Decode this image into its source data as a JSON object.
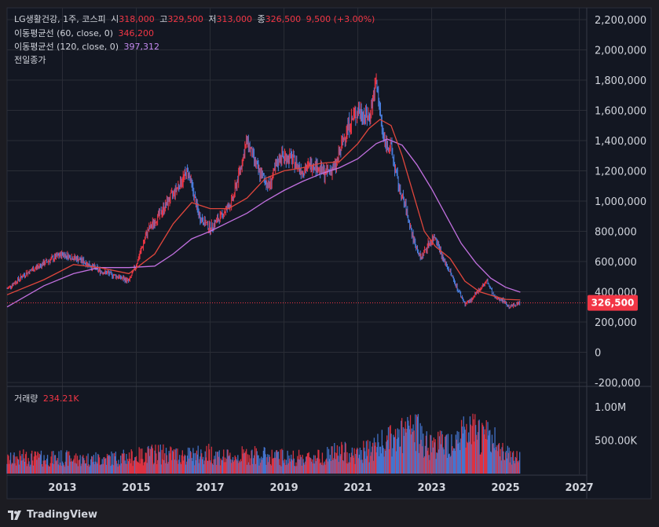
{
  "legend": {
    "symbol": "LG생활건강, 1주, 코스피",
    "open_label": "시",
    "open": "318,000",
    "high_label": "고",
    "high": "329,500",
    "low_label": "저",
    "low": "313,000",
    "close_label": "종",
    "close": "326,500",
    "change": "9,500 (+3.00%)",
    "ma60_label": "이동평균선 (60, close, 0)",
    "ma60_value": "346,200",
    "ma120_label": "이동평균선 (120, close, 0)",
    "ma120_value": "397,312",
    "prev_close_label": "전일종가",
    "volume_label": "거래량",
    "volume_value": "234.21K"
  },
  "price_badge": "326,500",
  "brand": "TradingView",
  "colors": {
    "up": "#f23645",
    "down": "#4a7fe0",
    "ma60": "#e0463c",
    "ma120": "#c270e0",
    "bg": "#1c1c22",
    "grid": "#2a2d36"
  },
  "chart_data": {
    "type": "line",
    "title": "LG생활건강, 1주, 코스피",
    "price_axis": {
      "ticks": [
        "2,200,000",
        "2,000,000",
        "1,800,000",
        "1,600,000",
        "1,400,000",
        "1,200,000",
        "1,000,000",
        "800,000",
        "600,000",
        "400,000",
        "200,000",
        "0",
        "-200,000"
      ],
      "tick_values": [
        2200000,
        2000000,
        1800000,
        1600000,
        1400000,
        1200000,
        1000000,
        800000,
        600000,
        400000,
        200000,
        0,
        -200000
      ],
      "ylim": [
        -200000,
        2200000
      ]
    },
    "volume_axis": {
      "ticks": [
        "1.00M",
        "500.00K"
      ],
      "tick_values": [
        1000000,
        500000
      ]
    },
    "time_axis": {
      "ticks": [
        "2013",
        "2015",
        "2017",
        "2019",
        "2021",
        "2023",
        "2025",
        "2027"
      ],
      "tick_values": [
        2013,
        2015,
        2017,
        2019,
        2021,
        2023,
        2025,
        2027
      ],
      "xlim": [
        2011.5,
        2027.2
      ]
    },
    "price_series": {
      "name": "LG생활건강 종가",
      "x": [
        2011.5,
        2012.0,
        2012.5,
        2013.0,
        2013.5,
        2014.0,
        2014.5,
        2014.8,
        2015.0,
        2015.3,
        2015.6,
        2016.0,
        2016.4,
        2016.7,
        2017.0,
        2017.3,
        2017.6,
        2018.0,
        2018.3,
        2018.6,
        2018.9,
        2019.2,
        2019.5,
        2019.8,
        2020.1,
        2020.4,
        2020.7,
        2021.0,
        2021.3,
        2021.5,
        2021.7,
        2021.9,
        2022.1,
        2022.3,
        2022.5,
        2022.7,
        2022.9,
        2023.1,
        2023.3,
        2023.5,
        2023.7,
        2023.9,
        2024.1,
        2024.3,
        2024.5,
        2024.7,
        2024.9,
        2025.1,
        2025.4
      ],
      "y": [
        420000,
        520000,
        590000,
        650000,
        610000,
        540000,
        500000,
        470000,
        580000,
        800000,
        900000,
        1050000,
        1200000,
        900000,
        820000,
        900000,
        1000000,
        1400000,
        1200000,
        1100000,
        1300000,
        1280000,
        1200000,
        1250000,
        1180000,
        1230000,
        1480000,
        1600000,
        1550000,
        1780000,
        1400000,
        1350000,
        1100000,
        950000,
        750000,
        620000,
        710000,
        770000,
        620000,
        530000,
        420000,
        320000,
        350000,
        420000,
        470000,
        360000,
        350000,
        300000,
        326500
      ]
    },
    "ma60_series": {
      "name": "이동평균선 (60, close, 0)",
      "x": [
        2011.5,
        2012.5,
        2013.3,
        2014.0,
        2014.8,
        2015.5,
        2016.0,
        2016.5,
        2017.0,
        2017.5,
        2018.0,
        2018.5,
        2019.0,
        2019.5,
        2020.0,
        2020.5,
        2021.0,
        2021.3,
        2021.6,
        2021.9,
        2022.2,
        2022.5,
        2022.8,
        2023.1,
        2023.5,
        2023.9,
        2024.3,
        2024.7,
        2025.0,
        2025.4
      ],
      "y": [
        380000,
        480000,
        580000,
        560000,
        520000,
        650000,
        850000,
        990000,
        950000,
        950000,
        1020000,
        1150000,
        1200000,
        1220000,
        1250000,
        1260000,
        1380000,
        1480000,
        1540000,
        1500000,
        1300000,
        1050000,
        800000,
        700000,
        620000,
        470000,
        400000,
        370000,
        350000,
        346200
      ]
    },
    "ma120_series": {
      "name": "이동평균선 (120, close, 0)",
      "x": [
        2011.5,
        2012.5,
        2013.3,
        2014.0,
        2014.8,
        2015.5,
        2016.0,
        2016.5,
        2017.0,
        2017.5,
        2018.0,
        2018.5,
        2019.0,
        2019.5,
        2020.0,
        2020.5,
        2021.0,
        2021.5,
        2021.8,
        2022.2,
        2022.6,
        2023.0,
        2023.4,
        2023.8,
        2024.2,
        2024.6,
        2025.0,
        2025.4
      ],
      "y": [
        300000,
        440000,
        520000,
        560000,
        560000,
        570000,
        650000,
        750000,
        800000,
        860000,
        920000,
        1000000,
        1070000,
        1130000,
        1180000,
        1220000,
        1280000,
        1380000,
        1410000,
        1370000,
        1240000,
        1080000,
        900000,
        720000,
        590000,
        490000,
        430000,
        397312
      ]
    },
    "volume_series": {
      "name": "거래량",
      "x": [
        2011.5,
        2012.0,
        2012.5,
        2013.0,
        2013.5,
        2014.0,
        2014.5,
        2015.0,
        2015.5,
        2016.0,
        2016.5,
        2017.0,
        2017.5,
        2018.0,
        2018.5,
        2019.0,
        2019.5,
        2020.0,
        2020.5,
        2021.0,
        2021.5,
        2022.0,
        2022.5,
        2023.0,
        2023.5,
        2024.0,
        2024.5,
        2025.0,
        2025.4
      ],
      "y": [
        200000,
        240000,
        220000,
        230000,
        210000,
        220000,
        230000,
        250000,
        300000,
        280000,
        260000,
        300000,
        230000,
        280000,
        260000,
        240000,
        230000,
        250000,
        320000,
        280000,
        400000,
        500000,
        650000,
        420000,
        480000,
        600000,
        550000,
        320000,
        234210
      ]
    },
    "last_price": 326500
  }
}
